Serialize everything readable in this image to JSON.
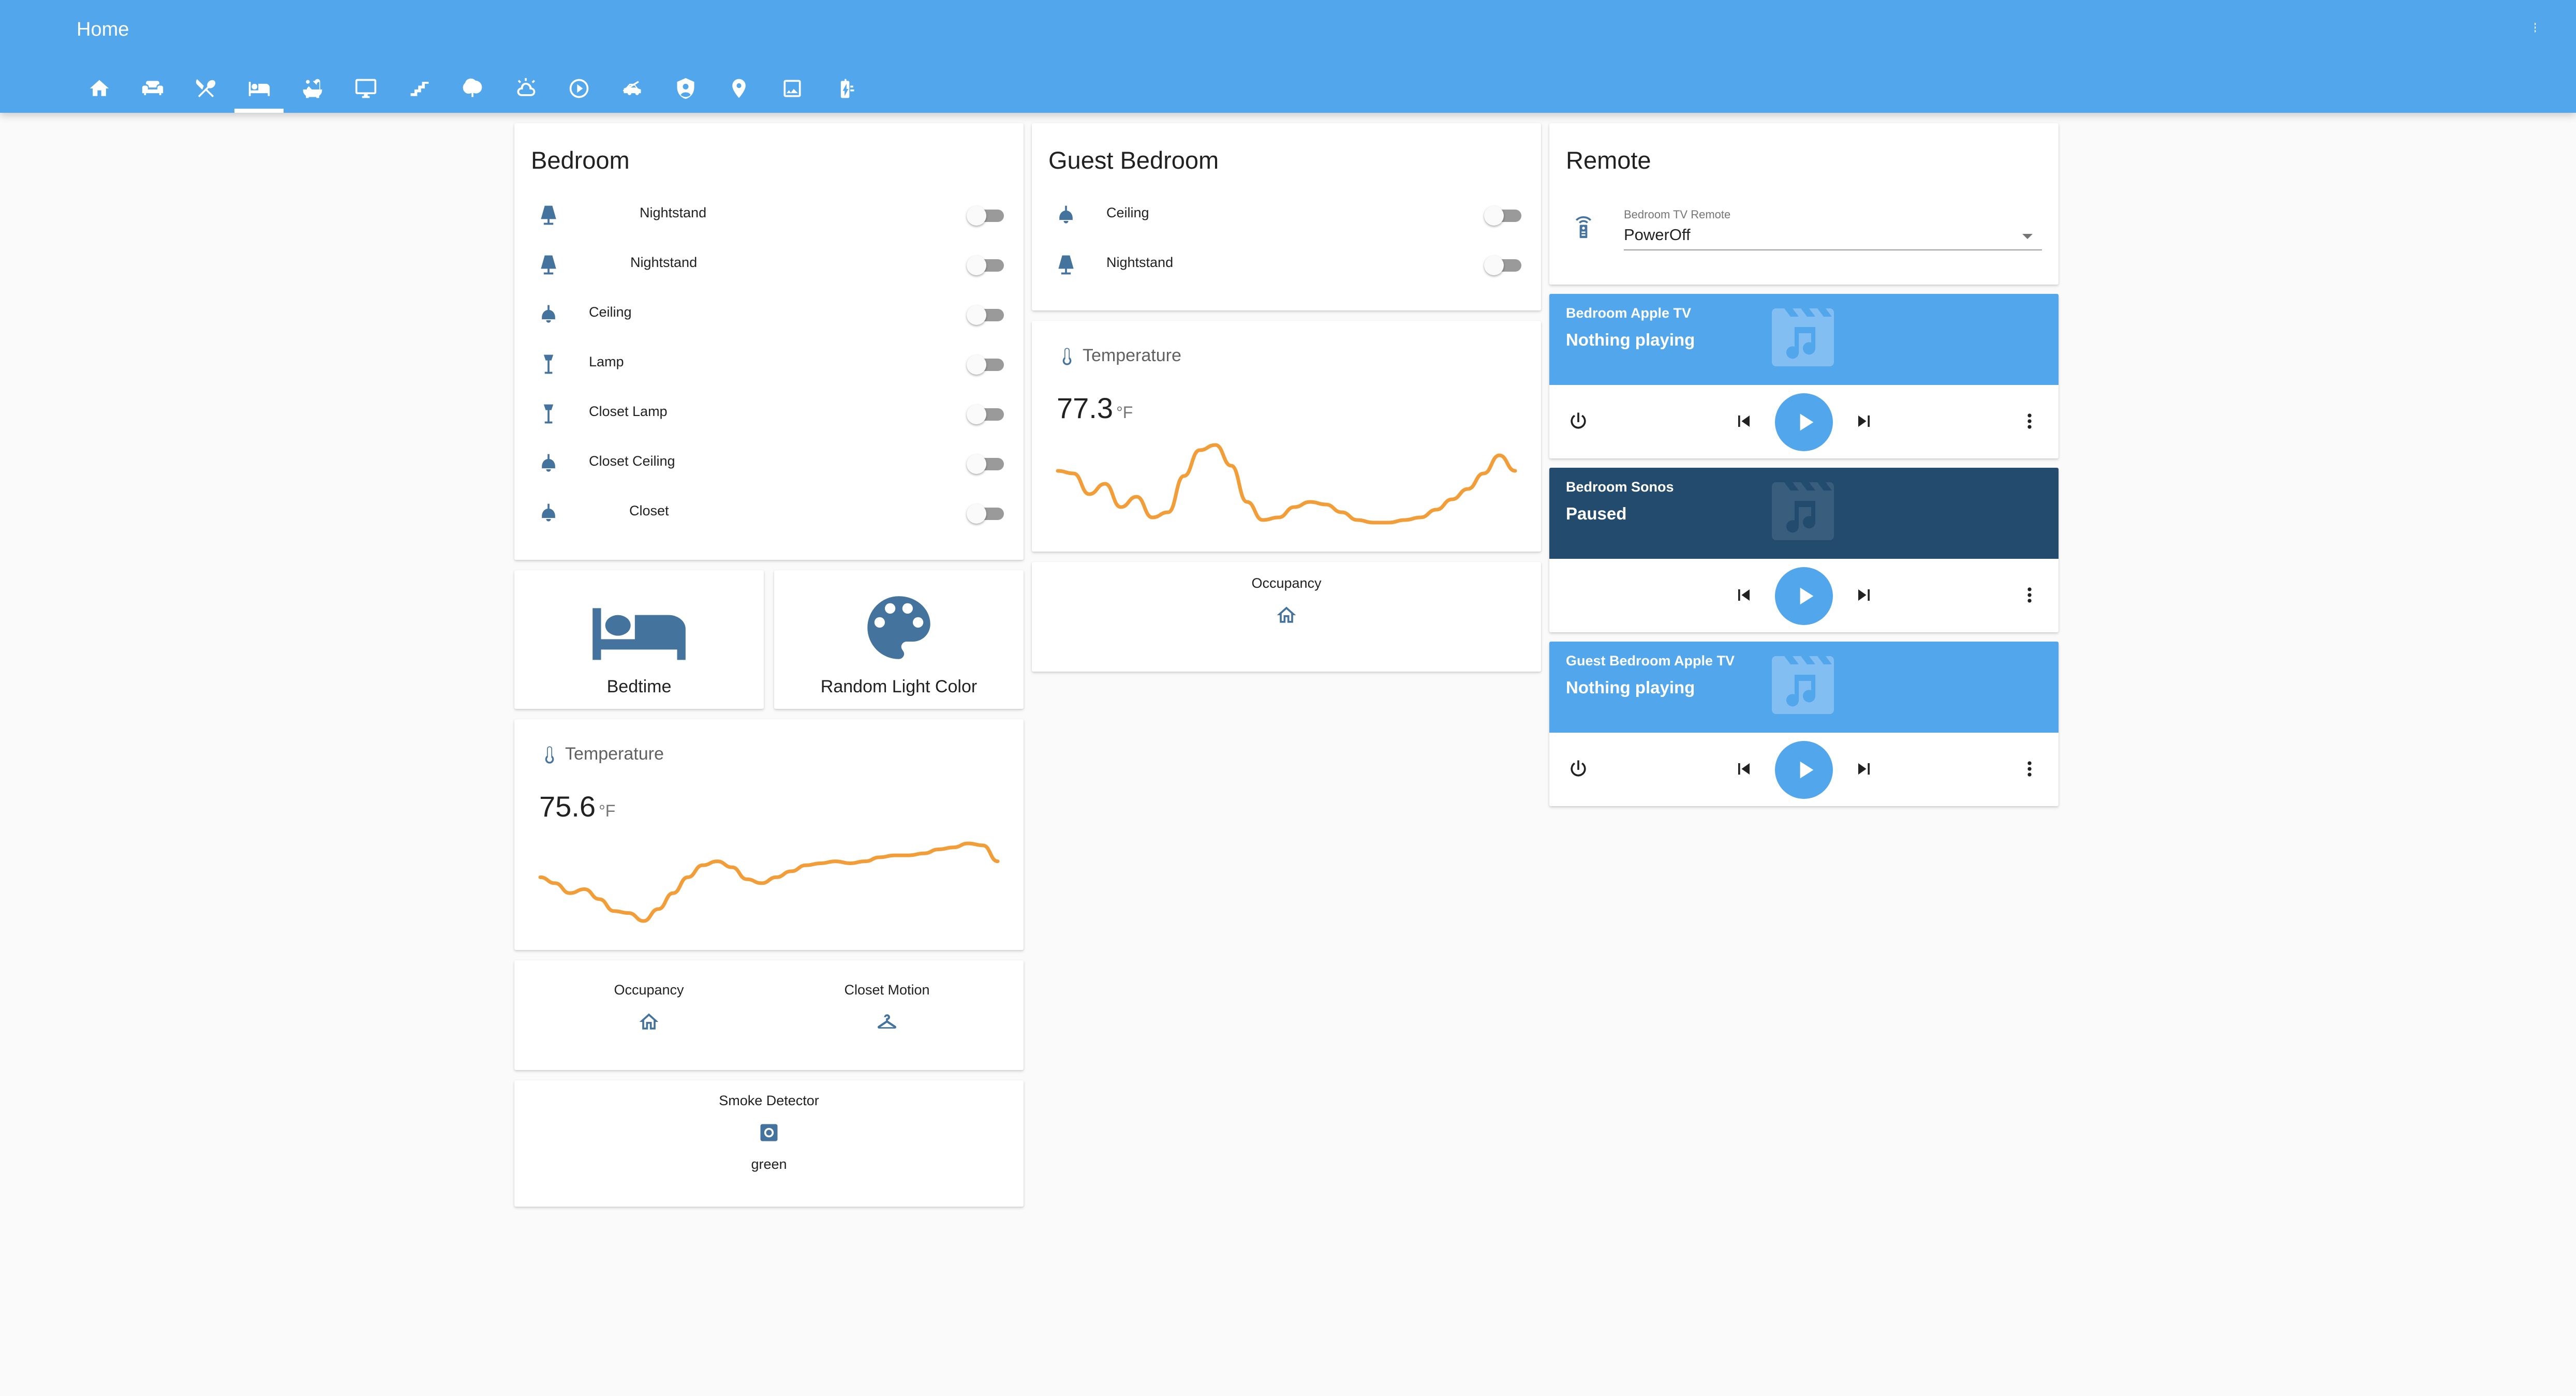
{
  "app": {
    "title": "Home"
  },
  "colors": {
    "primary": "#52a6ec",
    "icon": "#44739e",
    "orange": "#f29d37",
    "sonos": "#234b6e"
  },
  "tabs": [
    {
      "icon": "home-icon"
    },
    {
      "icon": "sofa-icon"
    },
    {
      "icon": "silverware-icon"
    },
    {
      "icon": "bed-icon",
      "active": true
    },
    {
      "icon": "bathtub-icon"
    },
    {
      "icon": "monitor-icon"
    },
    {
      "icon": "stairs-icon"
    },
    {
      "icon": "tree-icon"
    },
    {
      "icon": "weather-icon"
    },
    {
      "icon": "play-circle-icon"
    },
    {
      "icon": "car-icon"
    },
    {
      "icon": "security-shield-icon"
    },
    {
      "icon": "map-marker-icon"
    },
    {
      "icon": "image-icon"
    },
    {
      "icon": "battery-charging-icon"
    }
  ],
  "bedroom": {
    "title": "Bedroom",
    "entities": [
      {
        "name": "Nightstand",
        "icon": "lamp-icon",
        "on": false
      },
      {
        "name": "Nightstand",
        "icon": "lamp-icon",
        "on": false
      },
      {
        "name": "Ceiling",
        "icon": "ceiling-light-icon",
        "on": false
      },
      {
        "name": "Lamp",
        "icon": "floor-lamp-icon",
        "on": false
      },
      {
        "name": "Closet Lamp",
        "icon": "floor-lamp-icon",
        "on": false
      },
      {
        "name": "Closet Ceiling",
        "icon": "ceiling-light-icon",
        "on": false
      },
      {
        "name": "Closet",
        "icon": "ceiling-light-icon",
        "on": false
      }
    ],
    "buttons": [
      {
        "name": "Bedtime",
        "icon": "bed-icon"
      },
      {
        "name": "Random Light Color",
        "icon": "palette-icon"
      }
    ],
    "temperature": {
      "name": "Temperature",
      "value": "75.6",
      "unit": "°F",
      "history": [
        72,
        69,
        64,
        66,
        61,
        55,
        54,
        50,
        56,
        64,
        72,
        78,
        80,
        77,
        71,
        69,
        72,
        75,
        78,
        79,
        80,
        79,
        80,
        82,
        83,
        83,
        84,
        86,
        87,
        89,
        88,
        80
      ]
    },
    "glance": [
      {
        "name": "Occupancy",
        "icon": "home-outline-icon"
      },
      {
        "name": "Closet Motion",
        "icon": "hanger-icon"
      }
    ],
    "smoke": {
      "name": "Smoke Detector",
      "icon": "smoke-detector-icon",
      "state": "green"
    }
  },
  "guest": {
    "title": "Guest Bedroom",
    "entities": [
      {
        "name": "Ceiling",
        "icon": "ceiling-light-icon",
        "on": false
      },
      {
        "name": "Nightstand",
        "icon": "lamp-icon",
        "on": false
      }
    ],
    "temperature": {
      "name": "Temperature",
      "value": "77.3",
      "unit": "°F",
      "history": [
        74,
        73,
        65,
        69,
        60,
        64,
        56,
        58,
        72,
        82,
        84,
        76,
        62,
        55,
        56,
        60,
        62,
        61,
        58,
        55,
        54,
        54,
        55,
        56,
        59,
        63,
        67,
        73,
        80,
        74
      ]
    },
    "glance": [
      {
        "name": "Occupancy",
        "icon": "home-outline-icon"
      }
    ]
  },
  "remote": {
    "title": "Remote",
    "select": {
      "label": "Bedroom TV Remote",
      "value": "PowerOff"
    },
    "players": [
      {
        "name": "Bedroom Apple TV",
        "state": "Nothing playing",
        "theme": "blue",
        "power": true
      },
      {
        "name": "Bedroom Sonos",
        "state": "Paused",
        "theme": "dark",
        "power": false
      },
      {
        "name": "Guest Bedroom Apple TV",
        "state": "Nothing playing",
        "theme": "blue",
        "power": true
      }
    ]
  }
}
